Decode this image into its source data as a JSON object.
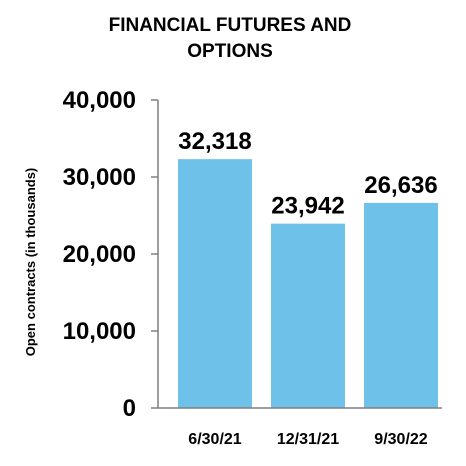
{
  "chart_data": {
    "type": "bar",
    "title_lines": [
      "FINANCIAL FUTURES AND",
      "OPTIONS"
    ],
    "xlabel": "",
    "ylabel": "Open contracts (in thousands)",
    "categories": [
      "6/30/21",
      "12/31/21",
      "9/30/22"
    ],
    "values": [
      32318,
      23942,
      26636
    ],
    "data_labels": [
      "32,318",
      "23,942",
      "26,636"
    ],
    "ylim": [
      0,
      40000
    ],
    "yticks": [
      0,
      10000,
      20000,
      30000,
      40000
    ],
    "ytick_labels": [
      "0",
      "10,000",
      "20,000",
      "30,000",
      "40,000"
    ],
    "grid": false,
    "legend": "none",
    "bar_color": "#6EC1E8",
    "axis_color": "#7F7F7F"
  }
}
